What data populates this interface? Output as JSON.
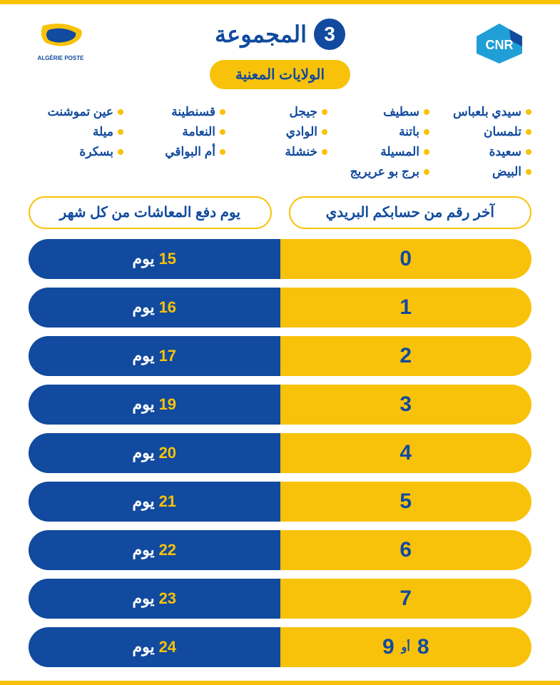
{
  "header": {
    "title_word": "المجموعة",
    "group_number": "3",
    "subhead": "الولايات المعنية"
  },
  "logos": {
    "cnr_label": "CNR",
    "poste_label": "ALGÉRIE POSTE"
  },
  "colors": {
    "blue": "#114a9e",
    "yellow": "#f9c20a",
    "white": "#ffffff"
  },
  "wilayas": [
    "سيدي بلعباس",
    "سطيف",
    "جيجل",
    "قسنطينة",
    "عين تموشنت",
    "تلمسان",
    "باتنة",
    "الوادي",
    "النعامة",
    "ميلة",
    "سعيدة",
    "المسيلة",
    "خنشلة",
    "أم البواقي",
    "بسكرة",
    "البيض",
    "برج بو عريريج"
  ],
  "columns": {
    "digit": "آخر رقم من حسابكم البريدي",
    "day": "يوم دفع المعاشات من كل شهر"
  },
  "day_word": "يوم",
  "or_word": "أو",
  "rows": [
    {
      "digits": [
        "0"
      ],
      "day": "15"
    },
    {
      "digits": [
        "1"
      ],
      "day": "16"
    },
    {
      "digits": [
        "2"
      ],
      "day": "17"
    },
    {
      "digits": [
        "3"
      ],
      "day": "19"
    },
    {
      "digits": [
        "4"
      ],
      "day": "20"
    },
    {
      "digits": [
        "5"
      ],
      "day": "21"
    },
    {
      "digits": [
        "6"
      ],
      "day": "22"
    },
    {
      "digits": [
        "7"
      ],
      "day": "23"
    },
    {
      "digits": [
        "8",
        "9"
      ],
      "day": "24"
    }
  ]
}
